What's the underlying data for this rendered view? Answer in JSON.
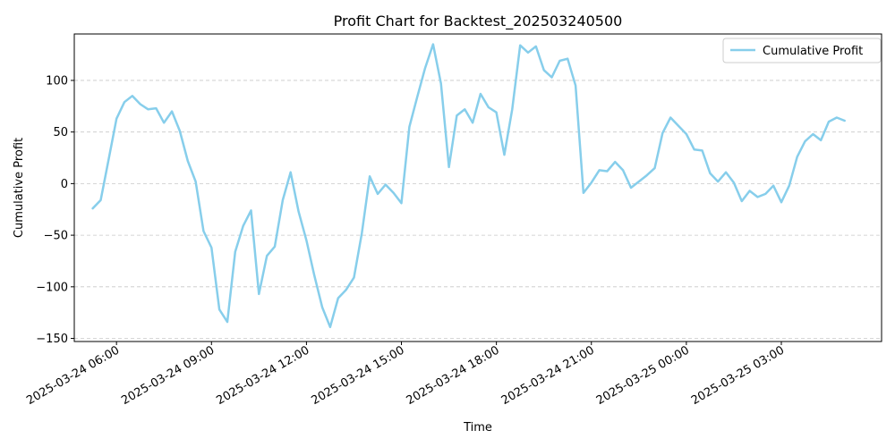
{
  "chart_data": {
    "type": "line",
    "title": "Profit Chart for Backtest_202503240500",
    "xlabel": "Time",
    "ylabel": "Cumulative Profit",
    "xlim": [
      "2025-03-24 04:40",
      "2025-03-25 06:10"
    ],
    "ylim": [
      -153,
      145
    ],
    "grid": "y-dashed",
    "legend_position": "top-right",
    "y_ticks": [
      -150,
      -100,
      -50,
      0,
      50,
      100
    ],
    "y_tick_labels": [
      "−150",
      "−100",
      "−50",
      "0",
      "50",
      "100"
    ],
    "x_ticks": [
      "2025-03-24 06:00",
      "2025-03-24 09:00",
      "2025-03-24 12:00",
      "2025-03-24 15:00",
      "2025-03-24 18:00",
      "2025-03-24 21:00",
      "2025-03-25 00:00",
      "2025-03-25 03:00"
    ],
    "x_tick_labels": [
      "2025-03-24 06:00",
      "2025-03-24 09:00",
      "2025-03-24 12:00",
      "2025-03-24 15:00",
      "2025-03-24 18:00",
      "2025-03-24 21:00",
      "2025-03-25 00:00",
      "2025-03-25 03:00"
    ],
    "series": [
      {
        "name": "Cumulative Profit",
        "color": "#87ceeb",
        "x": [
          "2025-03-24 05:15",
          "2025-03-24 05:30",
          "2025-03-24 05:45",
          "2025-03-24 06:00",
          "2025-03-24 06:15",
          "2025-03-24 06:30",
          "2025-03-24 06:45",
          "2025-03-24 07:00",
          "2025-03-24 07:15",
          "2025-03-24 07:30",
          "2025-03-24 07:45",
          "2025-03-24 08:00",
          "2025-03-24 08:15",
          "2025-03-24 08:30",
          "2025-03-24 08:45",
          "2025-03-24 09:00",
          "2025-03-24 09:15",
          "2025-03-24 09:30",
          "2025-03-24 09:45",
          "2025-03-24 10:00",
          "2025-03-24 10:15",
          "2025-03-24 10:30",
          "2025-03-24 10:45",
          "2025-03-24 11:00",
          "2025-03-24 11:15",
          "2025-03-24 11:30",
          "2025-03-24 11:45",
          "2025-03-24 12:00",
          "2025-03-24 12:15",
          "2025-03-24 12:30",
          "2025-03-24 12:45",
          "2025-03-24 13:00",
          "2025-03-24 13:15",
          "2025-03-24 13:30",
          "2025-03-24 13:45",
          "2025-03-24 14:00",
          "2025-03-24 14:15",
          "2025-03-24 14:30",
          "2025-03-24 14:45",
          "2025-03-24 15:00",
          "2025-03-24 15:15",
          "2025-03-24 15:30",
          "2025-03-24 15:45",
          "2025-03-24 16:00",
          "2025-03-24 16:15",
          "2025-03-24 16:30",
          "2025-03-24 16:45",
          "2025-03-24 17:00",
          "2025-03-24 17:15",
          "2025-03-24 17:30",
          "2025-03-24 17:45",
          "2025-03-24 18:00",
          "2025-03-24 18:15",
          "2025-03-24 18:30",
          "2025-03-24 18:45",
          "2025-03-24 19:00",
          "2025-03-24 19:15",
          "2025-03-24 19:30",
          "2025-03-24 19:45",
          "2025-03-24 20:00",
          "2025-03-24 20:15",
          "2025-03-24 20:30",
          "2025-03-24 20:45",
          "2025-03-24 21:00",
          "2025-03-24 21:15",
          "2025-03-24 21:30",
          "2025-03-24 21:45",
          "2025-03-24 22:00",
          "2025-03-24 22:15",
          "2025-03-24 22:30",
          "2025-03-24 22:45",
          "2025-03-24 23:00",
          "2025-03-24 23:15",
          "2025-03-24 23:30",
          "2025-03-24 23:45",
          "2025-03-25 00:00",
          "2025-03-25 00:15",
          "2025-03-25 00:30",
          "2025-03-25 00:45",
          "2025-03-25 01:00",
          "2025-03-25 01:15",
          "2025-03-25 01:30",
          "2025-03-25 01:45",
          "2025-03-25 02:00",
          "2025-03-25 02:15",
          "2025-03-25 02:30",
          "2025-03-25 02:45",
          "2025-03-25 03:00",
          "2025-03-25 03:15",
          "2025-03-25 03:30",
          "2025-03-25 03:45",
          "2025-03-25 04:00",
          "2025-03-25 04:15",
          "2025-03-25 04:30",
          "2025-03-25 04:45",
          "2025-03-25 05:00"
        ],
        "values": [
          -24,
          -16,
          23,
          63,
          79,
          85,
          77,
          72,
          73,
          59,
          70,
          51,
          22,
          2,
          -46,
          -62,
          -122,
          -134,
          -66,
          -41,
          -26,
          -107,
          -70,
          -61,
          -16,
          11,
          -27,
          -55,
          -89,
          -120,
          -139,
          -111,
          -103,
          -91,
          -48,
          7,
          -10,
          -1,
          -9,
          -19,
          55,
          84,
          112,
          135,
          97,
          16,
          66,
          72,
          59,
          87,
          74,
          69,
          28,
          72,
          134,
          127,
          133,
          110,
          103,
          119,
          121,
          95,
          -9,
          1,
          13,
          12,
          21,
          13,
          -4,
          2,
          8,
          15,
          49,
          64,
          56,
          48,
          33,
          32,
          10,
          2,
          11,
          1,
          -17,
          -7,
          -13,
          -10,
          -2,
          -18,
          -2,
          26,
          41,
          48,
          42,
          60,
          64,
          61
        ]
      }
    ]
  }
}
